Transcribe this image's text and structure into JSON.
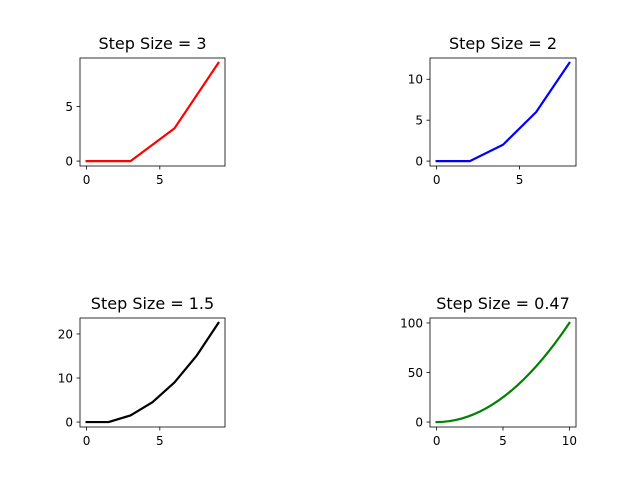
{
  "chart_data": [
    {
      "type": "line",
      "title": "Step Size = 3",
      "color": "#ff0000",
      "x": [
        0,
        3,
        6,
        9
      ],
      "y": [
        0,
        0,
        3,
        9
      ],
      "xlim": [
        -0.45,
        9.45
      ],
      "ylim": [
        -0.45,
        9.45
      ],
      "xticks": [
        0,
        5
      ],
      "yticks": [
        0,
        5
      ],
      "grid": false
    },
    {
      "type": "line",
      "title": "Step Size = 2",
      "color": "#0000ff",
      "x": [
        0,
        2,
        4,
        6,
        8
      ],
      "y": [
        0,
        0,
        2,
        6,
        12
      ],
      "xlim": [
        -0.4,
        8.4
      ],
      "ylim": [
        -0.6,
        12.6
      ],
      "xticks": [
        0,
        5
      ],
      "yticks": [
        0,
        5,
        10
      ],
      "grid": false
    },
    {
      "type": "line",
      "title": "Step Size = 1.5",
      "color": "#000000",
      "x": [
        0,
        1.5,
        3,
        4.5,
        6,
        7.5,
        9
      ],
      "y": [
        0,
        0,
        1.5,
        4.5,
        9,
        15,
        22.5
      ],
      "xlim": [
        -0.45,
        9.45
      ],
      "ylim": [
        -1.125,
        23.625
      ],
      "xticks": [
        0,
        5
      ],
      "yticks": [
        0,
        10,
        20
      ],
      "grid": false
    },
    {
      "type": "line",
      "title": "Step Size = 0.47",
      "color": "#008000",
      "curve": "y = x^2 sampled at step 0.47 from 0 to 10",
      "step": 0.47,
      "x_range": [
        0,
        10
      ],
      "xlim": [
        -0.5,
        10.5
      ],
      "ylim": [
        -5,
        105
      ],
      "xticks": [
        0,
        5,
        10
      ],
      "yticks": [
        0,
        50,
        100
      ],
      "grid": false
    }
  ]
}
